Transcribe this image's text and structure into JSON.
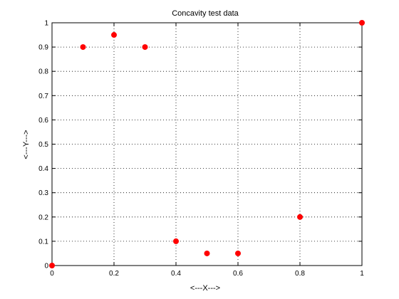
{
  "chart_data": {
    "type": "scatter",
    "title": "Concavity test data",
    "xlabel": "<---X--->",
    "ylabel": "<---Y--->",
    "xlim": [
      0,
      1
    ],
    "ylim": [
      0,
      1
    ],
    "grid": true,
    "x_ticks": [
      "0",
      "0.2",
      "0.4",
      "0.6",
      "0.8",
      "1"
    ],
    "y_ticks": [
      "0",
      "0.1",
      "0.2",
      "0.3",
      "0.4",
      "0.5",
      "0.6",
      "0.7",
      "0.8",
      "0.9",
      "1"
    ],
    "marker_color": "#ff0000",
    "points": [
      {
        "x": 0.0,
        "y": 0.0
      },
      {
        "x": 0.1,
        "y": 0.9
      },
      {
        "x": 0.2,
        "y": 0.95
      },
      {
        "x": 0.3,
        "y": 0.9
      },
      {
        "x": 0.4,
        "y": 0.1
      },
      {
        "x": 0.5,
        "y": 0.05
      },
      {
        "x": 0.6,
        "y": 0.05
      },
      {
        "x": 0.8,
        "y": 0.2
      },
      {
        "x": 1.0,
        "y": 1.0
      }
    ]
  }
}
